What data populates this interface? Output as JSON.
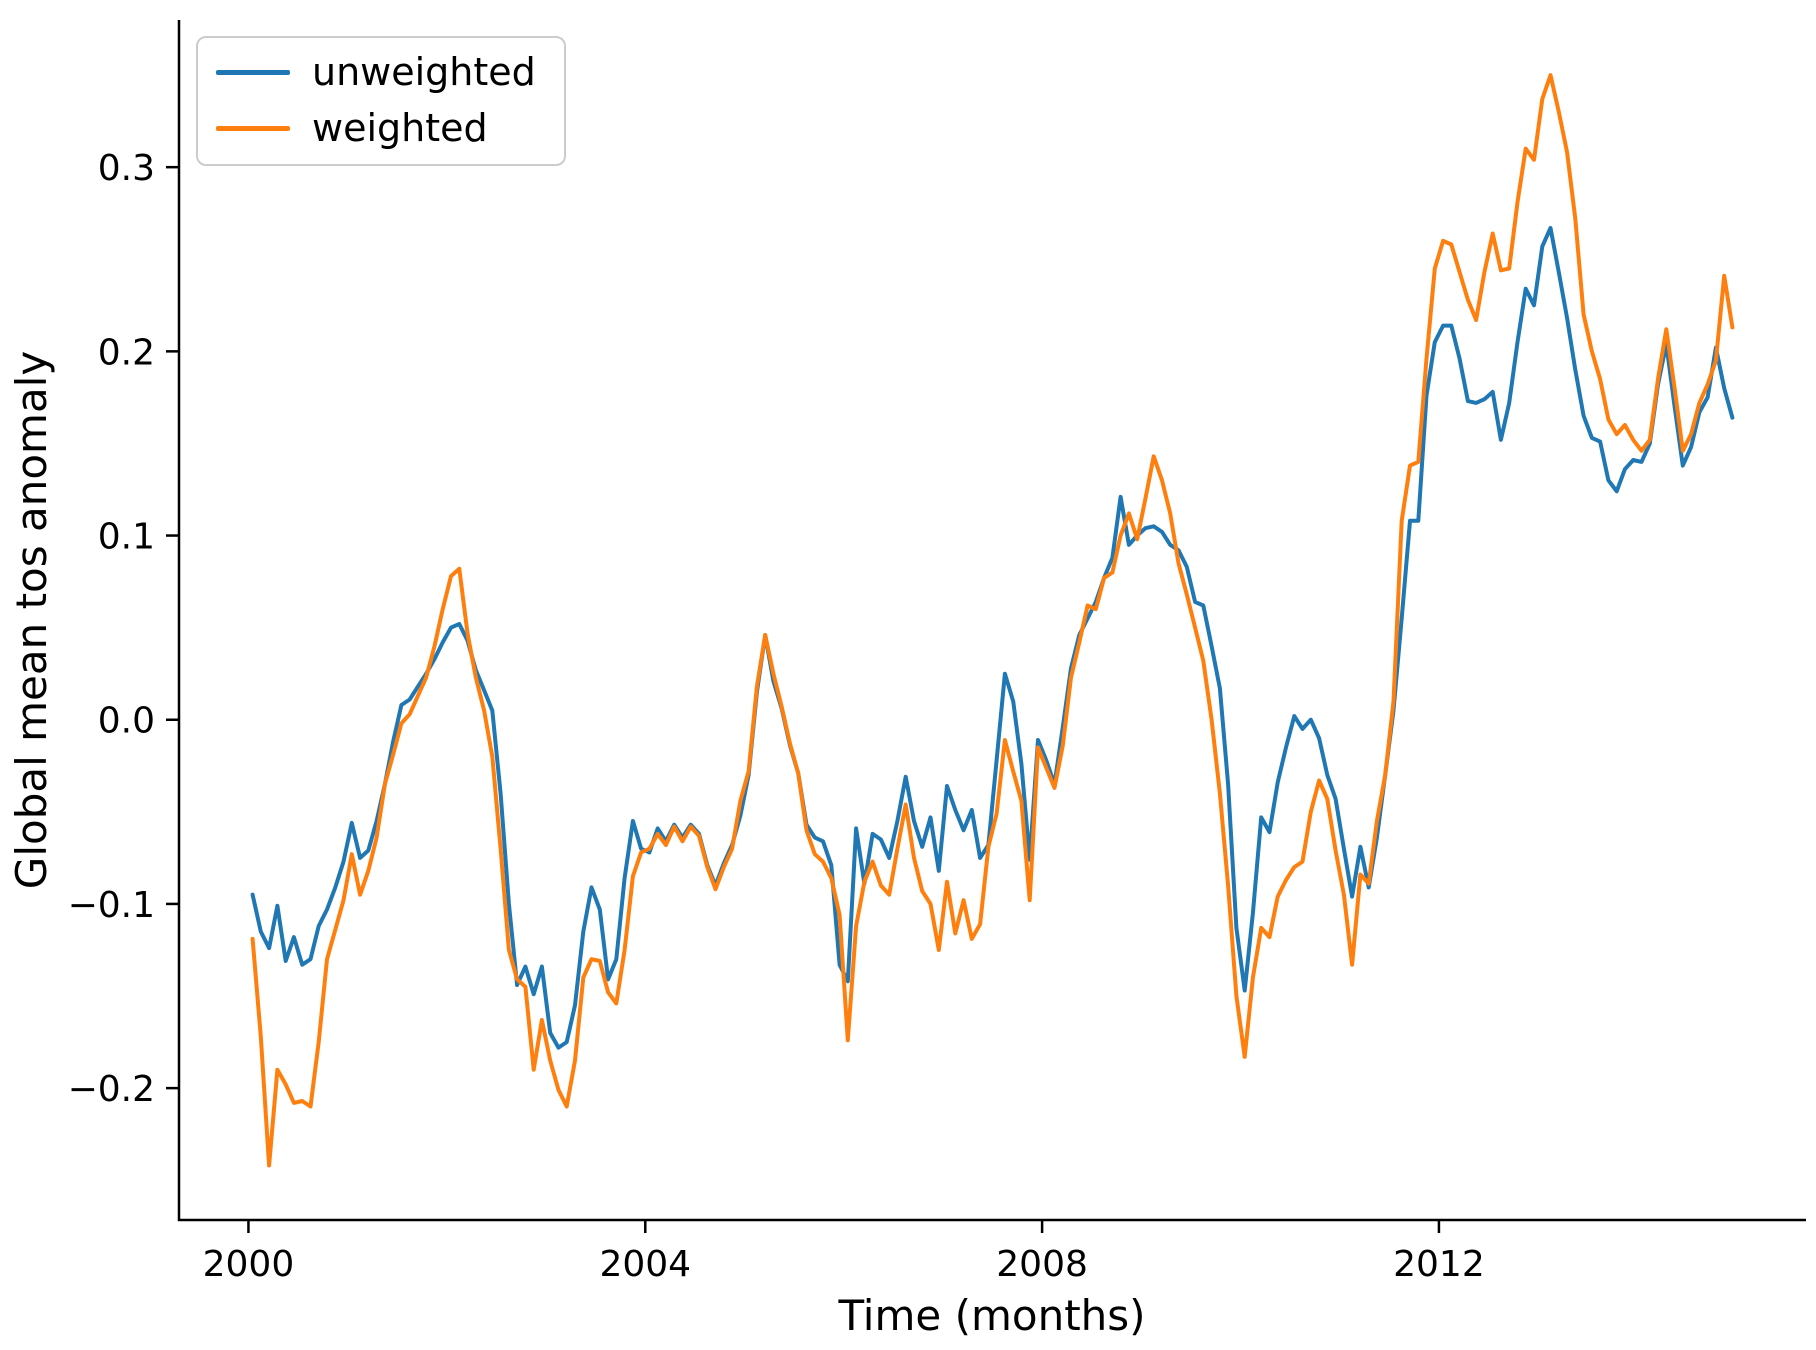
{
  "figure": {
    "background": "#ffffff"
  },
  "legend": {
    "position": "upper left"
  },
  "chart_data": {
    "type": "line",
    "title": "",
    "xlabel": "Time (months)",
    "ylabel": "Global mean tos anomaly",
    "grid": false,
    "legend_position": "upper left",
    "x_start_year": 2000.0417,
    "x_step_years": 0.0833333,
    "xlim": [
      1999.3,
      2015.7
    ],
    "ylim": [
      -0.2716,
      0.3799
    ],
    "x_ticks": [
      {
        "value": 2000,
        "label": "2000"
      },
      {
        "value": 2004,
        "label": "2004"
      },
      {
        "value": 2008,
        "label": "2008"
      },
      {
        "value": 2012,
        "label": "2012"
      }
    ],
    "y_ticks": [
      {
        "value": -0.2,
        "label": "−0.2"
      },
      {
        "value": -0.1,
        "label": "−0.1"
      },
      {
        "value": 0.0,
        "label": "0.0"
      },
      {
        "value": 0.1,
        "label": "0.1"
      },
      {
        "value": 0.2,
        "label": "0.2"
      },
      {
        "value": 0.3,
        "label": "0.3"
      }
    ],
    "series": [
      {
        "name": "unweighted",
        "color": "#1f77b4",
        "values": [
          -0.095,
          -0.115,
          -0.124,
          -0.101,
          -0.131,
          -0.118,
          -0.133,
          -0.13,
          -0.112,
          -0.103,
          -0.091,
          -0.077,
          -0.056,
          -0.075,
          -0.071,
          -0.055,
          -0.035,
          -0.012,
          0.008,
          0.011,
          0.018,
          0.025,
          0.033,
          0.042,
          0.05,
          0.052,
          0.043,
          0.027,
          0.016,
          0.005,
          -0.04,
          -0.1,
          -0.144,
          -0.134,
          -0.149,
          -0.134,
          -0.17,
          -0.178,
          -0.175,
          -0.155,
          -0.115,
          -0.091,
          -0.103,
          -0.141,
          -0.13,
          -0.086,
          -0.055,
          -0.07,
          -0.072,
          -0.059,
          -0.066,
          -0.057,
          -0.064,
          -0.057,
          -0.062,
          -0.079,
          -0.09,
          -0.078,
          -0.068,
          -0.052,
          -0.03,
          0.015,
          0.046,
          0.021,
          0.006,
          -0.014,
          -0.029,
          -0.057,
          -0.064,
          -0.066,
          -0.079,
          -0.133,
          -0.142,
          -0.059,
          -0.089,
          -0.062,
          -0.065,
          -0.075,
          -0.055,
          -0.031,
          -0.055,
          -0.069,
          -0.053,
          -0.082,
          -0.036,
          -0.049,
          -0.06,
          -0.049,
          -0.075,
          -0.068,
          -0.022,
          0.025,
          0.01,
          -0.024,
          -0.076,
          -0.011,
          -0.022,
          -0.035,
          -0.004,
          0.028,
          0.046,
          0.055,
          0.064,
          0.077,
          0.088,
          0.121,
          0.095,
          0.1,
          0.104,
          0.105,
          0.102,
          0.095,
          0.092,
          0.083,
          0.064,
          0.062,
          0.04,
          0.017,
          -0.035,
          -0.113,
          -0.147,
          -0.105,
          -0.053,
          -0.061,
          -0.034,
          -0.015,
          0.002,
          -0.005,
          0.0,
          -0.01,
          -0.03,
          -0.043,
          -0.07,
          -0.096,
          -0.069,
          -0.091,
          -0.064,
          -0.03,
          0.005,
          0.055,
          0.108,
          0.108,
          0.176,
          0.205,
          0.214,
          0.214,
          0.196,
          0.173,
          0.172,
          0.174,
          0.178,
          0.152,
          0.172,
          0.205,
          0.234,
          0.225,
          0.257,
          0.267,
          0.243,
          0.218,
          0.19,
          0.165,
          0.153,
          0.151,
          0.13,
          0.124,
          0.136,
          0.141,
          0.14,
          0.15,
          0.182,
          0.204,
          0.17,
          0.138,
          0.148,
          0.167,
          0.175,
          0.202,
          0.18,
          0.164
        ]
      },
      {
        "name": "weighted",
        "color": "#ff7f0e",
        "values": [
          -0.119,
          -0.172,
          -0.242,
          -0.19,
          -0.198,
          -0.208,
          -0.207,
          -0.21,
          -0.175,
          -0.13,
          -0.114,
          -0.098,
          -0.073,
          -0.095,
          -0.082,
          -0.064,
          -0.035,
          -0.019,
          -0.002,
          0.003,
          0.013,
          0.023,
          0.04,
          0.06,
          0.078,
          0.082,
          0.047,
          0.023,
          0.005,
          -0.02,
          -0.07,
          -0.125,
          -0.141,
          -0.145,
          -0.19,
          -0.163,
          -0.185,
          -0.201,
          -0.21,
          -0.185,
          -0.14,
          -0.13,
          -0.131,
          -0.148,
          -0.154,
          -0.125,
          -0.085,
          -0.072,
          -0.07,
          -0.062,
          -0.068,
          -0.058,
          -0.066,
          -0.058,
          -0.063,
          -0.08,
          -0.092,
          -0.08,
          -0.07,
          -0.044,
          -0.028,
          0.018,
          0.046,
          0.025,
          0.007,
          -0.013,
          -0.029,
          -0.06,
          -0.073,
          -0.077,
          -0.086,
          -0.106,
          -0.174,
          -0.112,
          -0.088,
          -0.077,
          -0.09,
          -0.095,
          -0.07,
          -0.046,
          -0.075,
          -0.093,
          -0.1,
          -0.125,
          -0.088,
          -0.116,
          -0.098,
          -0.119,
          -0.111,
          -0.069,
          -0.051,
          -0.011,
          -0.028,
          -0.044,
          -0.098,
          -0.015,
          -0.026,
          -0.037,
          -0.014,
          0.023,
          0.042,
          0.062,
          0.06,
          0.077,
          0.08,
          0.1,
          0.112,
          0.098,
          0.12,
          0.143,
          0.13,
          0.112,
          0.085,
          0.068,
          0.05,
          0.032,
          0.0,
          -0.04,
          -0.09,
          -0.15,
          -0.183,
          -0.14,
          -0.113,
          -0.118,
          -0.096,
          -0.087,
          -0.08,
          -0.077,
          -0.05,
          -0.033,
          -0.043,
          -0.071,
          -0.095,
          -0.133,
          -0.084,
          -0.089,
          -0.055,
          -0.03,
          0.01,
          0.108,
          0.138,
          0.14,
          0.196,
          0.245,
          0.26,
          0.258,
          0.243,
          0.228,
          0.217,
          0.243,
          0.264,
          0.244,
          0.245,
          0.281,
          0.31,
          0.304,
          0.337,
          0.35,
          0.33,
          0.308,
          0.272,
          0.22,
          0.2,
          0.185,
          0.163,
          0.155,
          0.16,
          0.152,
          0.146,
          0.152,
          0.185,
          0.212,
          0.18,
          0.146,
          0.155,
          0.172,
          0.182,
          0.195,
          0.241,
          0.213
        ]
      }
    ]
  }
}
